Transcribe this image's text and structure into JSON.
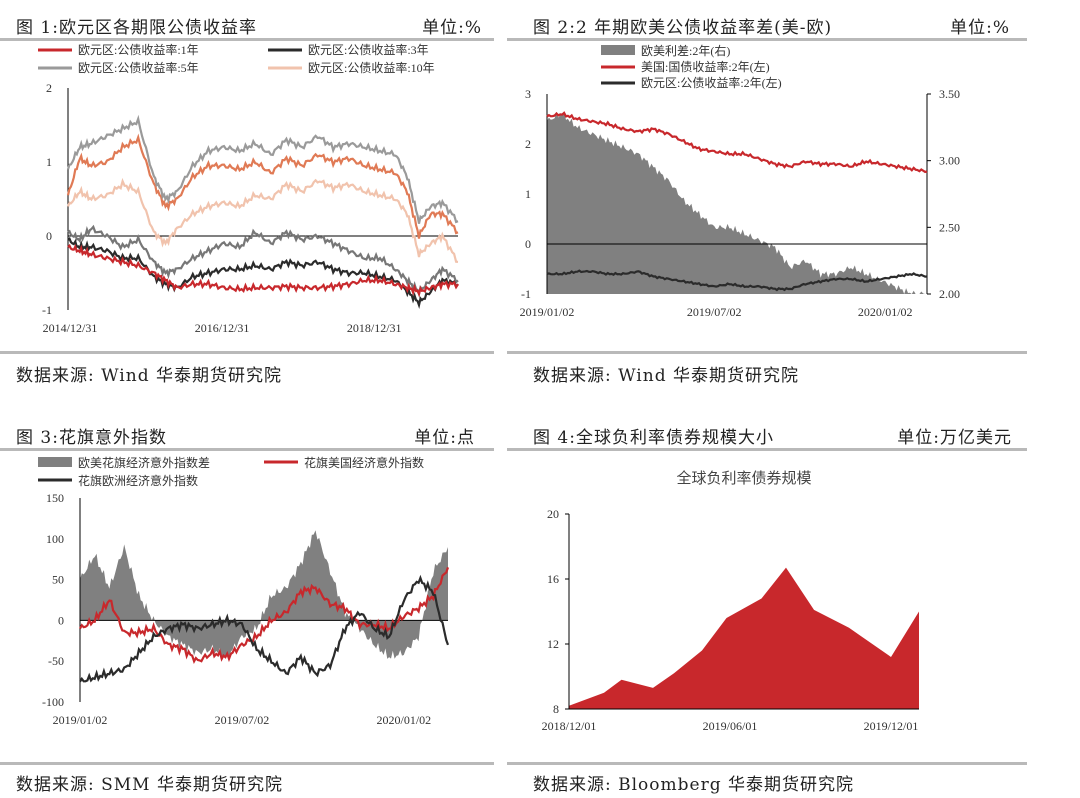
{
  "panels": [
    {
      "id": "p1",
      "title": "图 1:欧元区各期限公债收益率",
      "unit": "单位:%",
      "source": "数据来源: Wind 华泰期货研究院"
    },
    {
      "id": "p2",
      "title": "图 2:2 年期欧美公债收益率差(美-欧)",
      "unit": "单位:%",
      "source": "数据来源:  Wind 华泰期货研究院"
    },
    {
      "id": "p3",
      "title": "图 3:花旗意外指数",
      "unit": "单位:点",
      "source": "数据来源: SMM 华泰期货研究院"
    },
    {
      "id": "p4",
      "title": "图 4:全球负利率债券规模大小",
      "unit": "单位:万亿美元",
      "source": "数据来源:  Bloomberg 华泰期货研究院"
    }
  ],
  "colors": {
    "red": "#c8282c",
    "black": "#2b2b2b",
    "gray": "#9a9a9a",
    "lightpink": "#f1c3ad",
    "orange": "#e07a55",
    "area": "#808080",
    "fillred": "#c8282c"
  },
  "chart_data": [
    {
      "type": "line",
      "legend": [
        "欧元区:公债收益率:1年",
        "欧元区:公债收益率:3年",
        "欧元区:公债收益率:5年",
        "欧元区:公债收益率:10年"
      ],
      "x_ticks": [
        "2014/12/31",
        "2016/12/31",
        "2018/12/31"
      ],
      "ylim": [
        -1,
        2
      ],
      "y_ticks": [
        "2",
        "1",
        "0",
        "-1"
      ],
      "series": [
        {
          "name": "欧元区:公债收益率:10年",
          "color": "#e07a55",
          "x": [
            0,
            0.03,
            0.06,
            0.1,
            0.14,
            0.18,
            0.22,
            0.25,
            0.28,
            0.32,
            0.36,
            0.4,
            0.44,
            0.48,
            0.52,
            0.56,
            0.6,
            0.64,
            0.68,
            0.72,
            0.76,
            0.8,
            0.84,
            0.87,
            0.9,
            0.93,
            0.96,
            1
          ],
          "values": [
            0.55,
            1.05,
            0.95,
            1.0,
            1.2,
            1.3,
            0.7,
            0.4,
            0.5,
            0.8,
            0.95,
            0.95,
            0.9,
            1.0,
            0.85,
            1.05,
            0.95,
            1.1,
            1.0,
            1.05,
            0.95,
            0.9,
            0.85,
            0.6,
            0.0,
            0.3,
            0.3,
            0.05
          ]
        },
        {
          "name": "欧元区:公债收益率:5年",
          "color": "#9a9a9a",
          "x": [
            0,
            0.03,
            0.06,
            0.1,
            0.14,
            0.18,
            0.22,
            0.25,
            0.28,
            0.32,
            0.36,
            0.4,
            0.44,
            0.48,
            0.52,
            0.56,
            0.6,
            0.64,
            0.68,
            0.72,
            0.76,
            0.8,
            0.84,
            0.87,
            0.9,
            0.93,
            0.96,
            1
          ],
          "values": [
            0.9,
            1.2,
            1.25,
            1.35,
            1.45,
            1.55,
            0.8,
            0.5,
            0.6,
            0.95,
            1.15,
            1.2,
            1.15,
            1.25,
            1.1,
            1.3,
            1.2,
            1.35,
            1.2,
            1.25,
            1.2,
            1.15,
            1.1,
            0.8,
            0.2,
            0.4,
            0.45,
            0.2
          ]
        },
        {
          "name": "欧元区:公债收益率:10年",
          "color": "#f1c3ad",
          "x": [
            0,
            0.03,
            0.06,
            0.1,
            0.14,
            0.18,
            0.22,
            0.25,
            0.28,
            0.32,
            0.36,
            0.4,
            0.44,
            0.48,
            0.52,
            0.56,
            0.6,
            0.64,
            0.68,
            0.72,
            0.76,
            0.8,
            0.84,
            0.87,
            0.9,
            0.93,
            0.96,
            1
          ],
          "values": [
            0.4,
            0.6,
            0.5,
            0.55,
            0.7,
            0.6,
            0.05,
            -0.1,
            0.1,
            0.3,
            0.4,
            0.45,
            0.4,
            0.55,
            0.5,
            0.7,
            0.6,
            0.75,
            0.65,
            0.7,
            0.6,
            0.55,
            0.5,
            0.3,
            -0.25,
            -0.1,
            0.0,
            -0.35
          ]
        },
        {
          "name": "欧元区:公债收益率:5年",
          "color": "#777777",
          "x": [
            0,
            0.03,
            0.06,
            0.1,
            0.14,
            0.18,
            0.22,
            0.25,
            0.28,
            0.32,
            0.36,
            0.4,
            0.44,
            0.48,
            0.52,
            0.56,
            0.6,
            0.64,
            0.68,
            0.72,
            0.76,
            0.8,
            0.84,
            0.87,
            0.9,
            0.93,
            0.96,
            1
          ],
          "values": [
            0.05,
            -0.05,
            0.1,
            0.0,
            -0.15,
            -0.05,
            -0.35,
            -0.5,
            -0.45,
            -0.3,
            -0.2,
            -0.1,
            -0.15,
            0.05,
            -0.1,
            0.05,
            -0.05,
            0.0,
            -0.1,
            -0.2,
            -0.3,
            -0.3,
            -0.45,
            -0.6,
            -0.75,
            -0.6,
            -0.45,
            -0.6
          ]
        },
        {
          "name": "欧元区:公债收益率:3年",
          "color": "#2b2b2b",
          "x": [
            0,
            0.03,
            0.06,
            0.1,
            0.14,
            0.18,
            0.22,
            0.25,
            0.28,
            0.32,
            0.36,
            0.4,
            0.44,
            0.48,
            0.52,
            0.56,
            0.6,
            0.64,
            0.68,
            0.72,
            0.76,
            0.8,
            0.84,
            0.87,
            0.9,
            0.93,
            0.96,
            1
          ],
          "values": [
            -0.05,
            -0.15,
            -0.15,
            -0.2,
            -0.3,
            -0.3,
            -0.55,
            -0.65,
            -0.7,
            -0.55,
            -0.5,
            -0.45,
            -0.45,
            -0.4,
            -0.45,
            -0.35,
            -0.4,
            -0.35,
            -0.45,
            -0.5,
            -0.5,
            -0.55,
            -0.6,
            -0.75,
            -0.9,
            -0.75,
            -0.6,
            -0.65
          ]
        },
        {
          "name": "欧元区:公债收益率:1年",
          "color": "#c8282c",
          "x": [
            0,
            0.03,
            0.06,
            0.1,
            0.14,
            0.18,
            0.22,
            0.25,
            0.28,
            0.32,
            0.36,
            0.4,
            0.44,
            0.48,
            0.52,
            0.56,
            0.6,
            0.64,
            0.68,
            0.72,
            0.76,
            0.8,
            0.84,
            0.87,
            0.9,
            0.93,
            0.96,
            1
          ],
          "values": [
            -0.15,
            -0.2,
            -0.25,
            -0.3,
            -0.35,
            -0.4,
            -0.5,
            -0.6,
            -0.7,
            -0.65,
            -0.65,
            -0.7,
            -0.72,
            -0.7,
            -0.7,
            -0.68,
            -0.7,
            -0.7,
            -0.68,
            -0.65,
            -0.6,
            -0.6,
            -0.65,
            -0.7,
            -0.75,
            -0.7,
            -0.65,
            -0.65
          ]
        }
      ]
    },
    {
      "type": "area+line",
      "legend": [
        "欧美利差:2年(右)",
        "美国:国债收益率:2年(左)",
        "欧元区:公债收益率:2年(左)"
      ],
      "x_ticks": [
        "2019/01/02",
        "2019/07/02",
        "2020/01/02"
      ],
      "ylim_left": [
        -1,
        3
      ],
      "y_ticks_left": [
        "3",
        "2",
        "1",
        "0",
        "-1"
      ],
      "ylim_right": [
        2.0,
        3.5
      ],
      "y_ticks_right": [
        "3.50",
        "3.00",
        "2.50",
        "2.00"
      ],
      "x": [
        0,
        0.04,
        0.08,
        0.12,
        0.16,
        0.2,
        0.24,
        0.28,
        0.32,
        0.36,
        0.4,
        0.44,
        0.48,
        0.52,
        0.56,
        0.6,
        0.64,
        0.68,
        0.72,
        0.76,
        0.8,
        0.84,
        0.88,
        0.92,
        0.96,
        1
      ],
      "series": [
        {
          "name": "欧美利差:2年(右)",
          "values": [
            3.3,
            3.35,
            3.25,
            3.2,
            3.15,
            3.1,
            3.05,
            2.95,
            2.85,
            2.7,
            2.6,
            2.5,
            2.5,
            2.45,
            2.4,
            2.35,
            2.2,
            2.25,
            2.15,
            2.15,
            2.2,
            2.15,
            2.1,
            2.05,
            2.0,
            2.0
          ]
        },
        {
          "name": "美国:国债收益率:2年(左)",
          "values": [
            2.55,
            2.6,
            2.5,
            2.45,
            2.4,
            2.3,
            2.25,
            2.3,
            2.2,
            2.05,
            1.9,
            1.85,
            1.8,
            1.8,
            1.7,
            1.6,
            1.55,
            1.65,
            1.6,
            1.6,
            1.55,
            1.65,
            1.6,
            1.55,
            1.5,
            1.45
          ]
        },
        {
          "name": "欧元区:公债收益率:2年(左)",
          "values": [
            -0.6,
            -0.6,
            -0.55,
            -0.55,
            -0.6,
            -0.6,
            -0.55,
            -0.65,
            -0.7,
            -0.75,
            -0.8,
            -0.85,
            -0.8,
            -0.85,
            -0.85,
            -0.9,
            -0.9,
            -0.8,
            -0.75,
            -0.7,
            -0.7,
            -0.75,
            -0.7,
            -0.65,
            -0.6,
            -0.65
          ]
        }
      ]
    },
    {
      "type": "area+line",
      "legend": [
        "欧美花旗经济意外指数差",
        "花旗美国经济意外指数",
        "花旗欧洲经济意外指数"
      ],
      "x_ticks": [
        "2019/01/02",
        "2019/07/02",
        "2020/01/02"
      ],
      "ylim": [
        -100,
        150
      ],
      "y_ticks": [
        "150",
        "100",
        "50",
        "0",
        "-50",
        "-100"
      ],
      "x": [
        0,
        0.04,
        0.08,
        0.12,
        0.16,
        0.2,
        0.24,
        0.28,
        0.32,
        0.36,
        0.4,
        0.44,
        0.48,
        0.52,
        0.56,
        0.6,
        0.64,
        0.68,
        0.72,
        0.76,
        0.8,
        0.84,
        0.88,
        0.92,
        0.96,
        1
      ],
      "series": [
        {
          "name": "欧美花旗经济意外指数差",
          "values": [
            50,
            80,
            40,
            90,
            30,
            0,
            -20,
            -30,
            -40,
            -35,
            -45,
            -20,
            -10,
            30,
            40,
            70,
            110,
            60,
            10,
            -10,
            -30,
            -45,
            -40,
            -20,
            60,
            90
          ]
        },
        {
          "name": "花旗美国经济意外指数",
          "values": [
            -10,
            0,
            25,
            -15,
            -15,
            -10,
            -30,
            -35,
            -50,
            -40,
            -45,
            -30,
            -20,
            0,
            10,
            35,
            40,
            20,
            15,
            -5,
            -5,
            -10,
            5,
            15,
            30,
            65
          ]
        },
        {
          "name": "花旗欧洲经济意外指数",
          "values": [
            -75,
            -70,
            -65,
            -60,
            -40,
            -20,
            -10,
            -5,
            -10,
            -5,
            0,
            -5,
            -35,
            -50,
            -65,
            -45,
            -65,
            -55,
            -10,
            10,
            -10,
            -20,
            25,
            50,
            35,
            -30
          ]
        }
      ]
    },
    {
      "type": "area",
      "title": "全球负利率债券规模",
      "x_ticks": [
        "2018/12/01",
        "2019/06/01",
        "2019/12/01"
      ],
      "ylim": [
        8,
        20
      ],
      "y_ticks": [
        "20",
        "16",
        "12",
        "8"
      ],
      "x": [
        0,
        0.1,
        0.15,
        0.24,
        0.3,
        0.38,
        0.45,
        0.55,
        0.62,
        0.7,
        0.8,
        0.92,
        1
      ],
      "values": [
        8.2,
        9.0,
        9.8,
        9.3,
        10.2,
        11.6,
        13.6,
        14.8,
        16.7,
        14.1,
        13.0,
        11.2,
        14.0
      ]
    }
  ]
}
